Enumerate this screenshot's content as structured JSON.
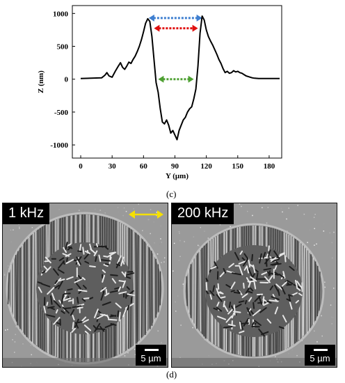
{
  "chart_data": {
    "type": "line",
    "xlabel": "Y (μm)",
    "ylabel": "Z (nm)",
    "xlim": [
      -8,
      192
    ],
    "ylim": [
      -1200,
      1120
    ],
    "x_ticks": [
      0,
      30,
      60,
      90,
      120,
      150,
      180
    ],
    "y_ticks": [
      1000,
      500,
      0,
      -500,
      -1000
    ],
    "grid": false,
    "series": [
      {
        "color": "#000000",
        "x": [
          0,
          10,
          20,
          23,
          25,
          27,
          30,
          33,
          36,
          38,
          40,
          42,
          44,
          46,
          48,
          50,
          52,
          54,
          56,
          58,
          60,
          62,
          64,
          66,
          68,
          70,
          72,
          74,
          76,
          78,
          80,
          82,
          84,
          86,
          88,
          90,
          92,
          94,
          96,
          98,
          100,
          102,
          104,
          106,
          108,
          110,
          112,
          114,
          116,
          118,
          120,
          122,
          124,
          126,
          128,
          130,
          132,
          134,
          136,
          138,
          140,
          142,
          144,
          146,
          148,
          150,
          152,
          154,
          156,
          158,
          160,
          162,
          164,
          166,
          170,
          180,
          190
        ],
        "y": [
          10,
          15,
          20,
          60,
          100,
          50,
          30,
          120,
          200,
          250,
          180,
          150,
          200,
          260,
          240,
          300,
          350,
          420,
          500,
          600,
          720,
          850,
          920,
          880,
          650,
          300,
          -50,
          -200,
          -450,
          -650,
          -680,
          -620,
          -700,
          -820,
          -780,
          -850,
          -920,
          -780,
          -700,
          -620,
          -580,
          -500,
          -450,
          -420,
          -300,
          -150,
          200,
          700,
          960,
          900,
          750,
          650,
          580,
          520,
          450,
          380,
          300,
          240,
          160,
          100,
          120,
          90,
          100,
          130,
          110,
          120,
          100,
          90,
          70,
          50,
          40,
          30,
          20,
          15,
          10,
          10,
          10
        ]
      }
    ],
    "annotations": [
      {
        "type": "double-arrow",
        "color": "#3f7fd0",
        "x_from": 65,
        "x_to": 116,
        "y": 930
      },
      {
        "type": "double-arrow",
        "color": "#e01010",
        "x_from": 70,
        "x_to": 112,
        "y": 775
      },
      {
        "type": "double-arrow",
        "color": "#4ea032",
        "x_from": 74,
        "x_to": 108,
        "y": 0
      }
    ],
    "panel_label": "(c)"
  },
  "images": {
    "panel_label": "(d)",
    "left": {
      "frequency": "1 kHz",
      "scale": "5 µm",
      "has_yellow_arrow": true
    },
    "right": {
      "frequency": "200 kHz",
      "scale": "5 µm"
    }
  },
  "colors": {
    "yellow_arrow": "#f5e000",
    "blue": "#3f7fd0",
    "red": "#e01010",
    "green": "#4ea032"
  }
}
